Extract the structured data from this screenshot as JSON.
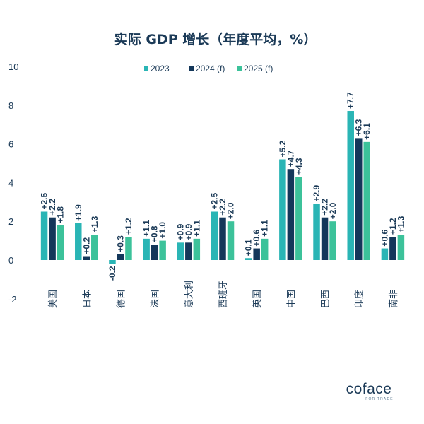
{
  "chart_data": {
    "type": "bar",
    "title": "实际 GDP 增长（年度平均，%）",
    "categories": [
      "美国",
      "日本",
      "德国",
      "法国",
      "意大利",
      "西班牙",
      "英国",
      "中国",
      "巴西",
      "印度",
      "南非"
    ],
    "series": [
      {
        "name": "2023",
        "color": "#2ab5b5",
        "values": [
          2.5,
          1.9,
          -0.2,
          1.1,
          0.9,
          2.5,
          0.1,
          5.2,
          2.9,
          7.7,
          0.6
        ],
        "labels": [
          "+2.5",
          "+1.9",
          "-0.2",
          "+1.1",
          "+0.9",
          "+2.5",
          "+0.1",
          "+5.2",
          "+2.9",
          "+7.7",
          "+0.6"
        ]
      },
      {
        "name": "2024 (f)",
        "color": "#14375a",
        "values": [
          2.2,
          0.2,
          0.3,
          0.8,
          0.9,
          2.2,
          0.6,
          4.7,
          2.2,
          6.3,
          1.2
        ],
        "labels": [
          "+2.2",
          "+0.2",
          "+0.3",
          "+0.8",
          "+0.9",
          "+2.2",
          "+0.6",
          "+4.7",
          "+2.2",
          "+6.3",
          "+1.2"
        ]
      },
      {
        "name": "2025 (f)",
        "color": "#3cc29a",
        "values": [
          1.8,
          1.3,
          1.2,
          1.0,
          1.1,
          2.0,
          1.1,
          4.3,
          2.0,
          6.1,
          1.3
        ],
        "labels": [
          "+1.8",
          "+1.3",
          "+1.2",
          "+1.0",
          "+1.1",
          "+2.0",
          "+1.1",
          "+4.3",
          "+2.0",
          "+6.1",
          "+1.3"
        ]
      }
    ],
    "ylim": [
      -2,
      10
    ],
    "yticks": [
      10,
      8,
      6,
      4,
      2,
      0,
      -2
    ],
    "grid": false,
    "legend_position": "top"
  },
  "logo": {
    "name": "coface",
    "tagline": "FOR TRADE"
  }
}
